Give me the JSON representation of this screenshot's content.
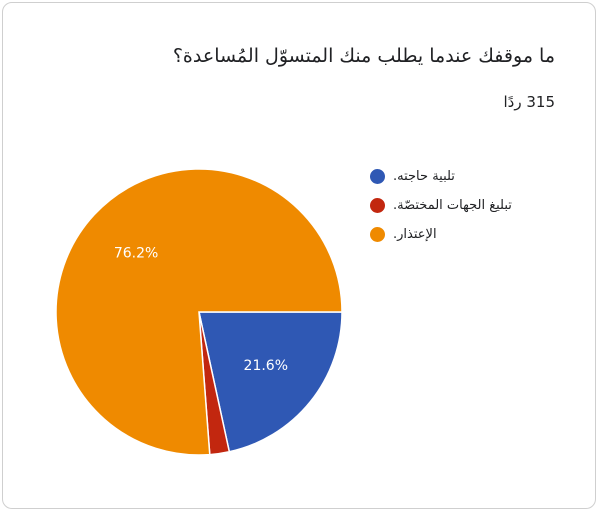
{
  "chart_data": {
    "type": "pie",
    "title": "ما موقفك عندما يطلب منك المتسوّل المُساعدة؟",
    "subtitle": "315 ردًا",
    "categories": [
      "تلبية حاجته.",
      "تبليغ الجهات المختصّة.",
      "الإعتذار."
    ],
    "values": [
      21.6,
      2.2,
      76.2
    ],
    "value_labels": [
      "21.6%",
      null,
      "76.2%"
    ],
    "colors": [
      "#2f58b4",
      "#c2270f",
      "#ef8a00"
    ],
    "legend": "right"
  }
}
